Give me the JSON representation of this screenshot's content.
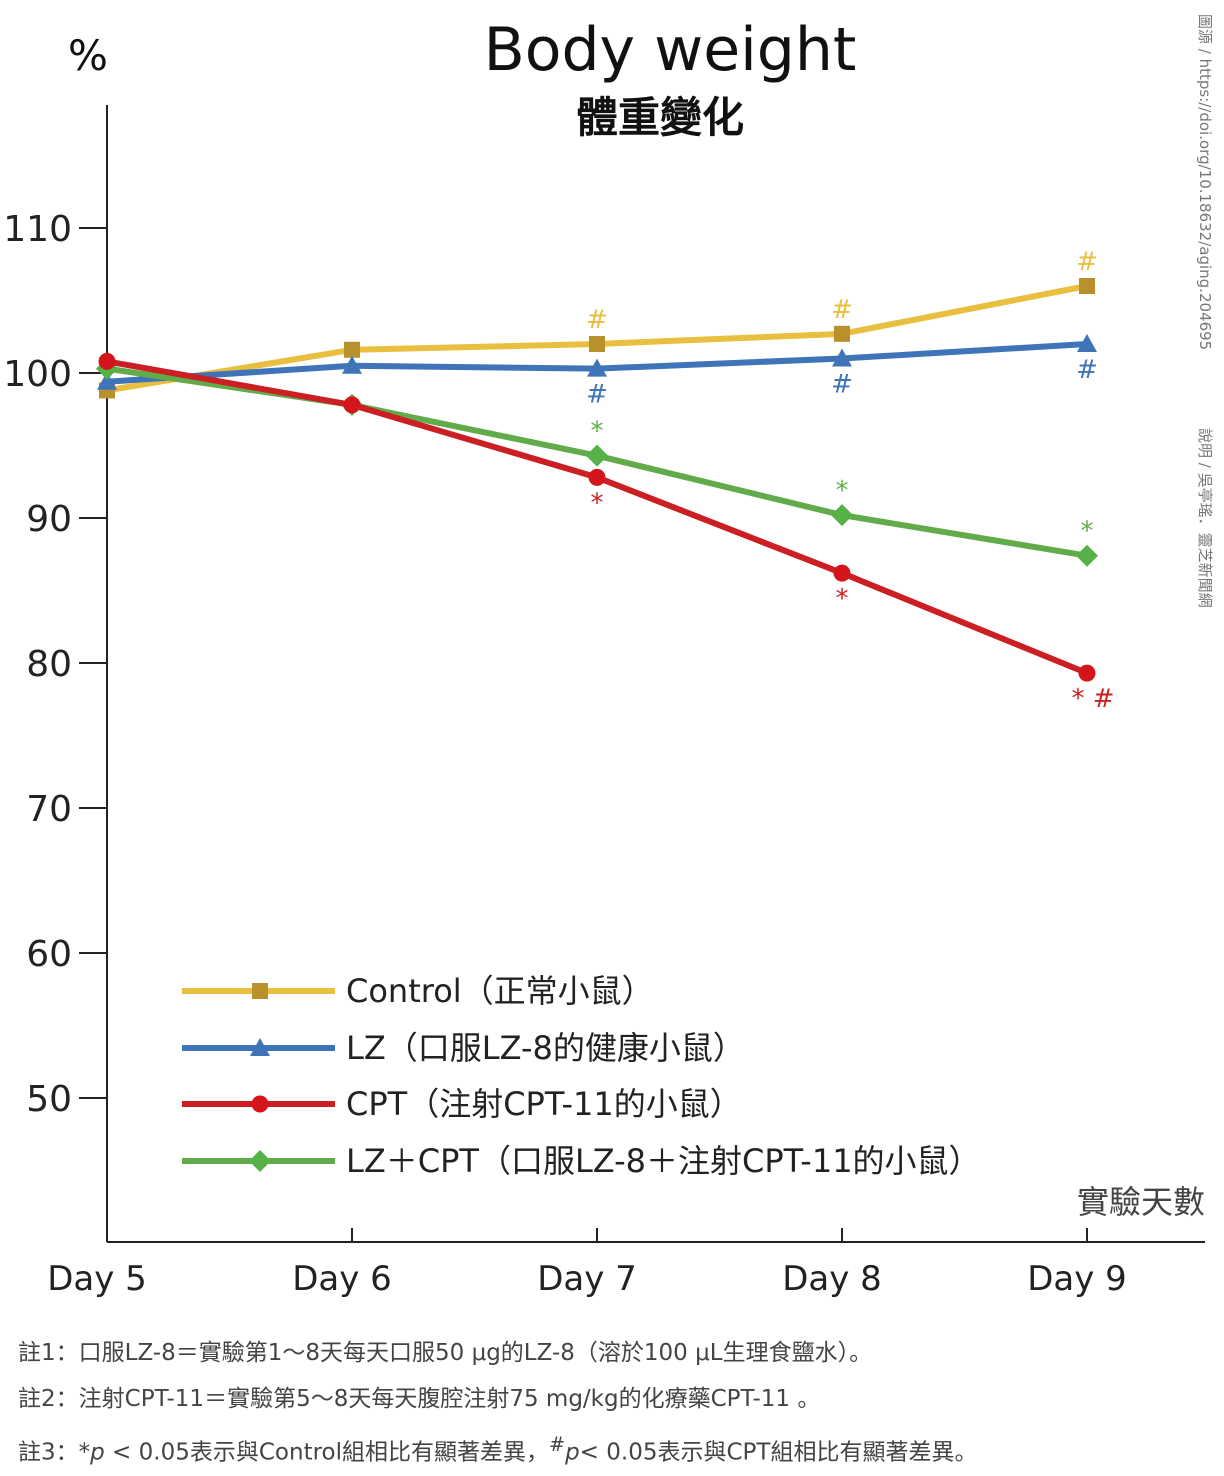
{
  "chart_data": {
    "type": "line",
    "title": "Body weight",
    "subtitle": "體重變化",
    "ylabel": "%",
    "xlabel": "實驗天數",
    "ylim": [
      40,
      118
    ],
    "yticks": [
      50,
      60,
      70,
      80,
      90,
      100,
      110
    ],
    "categories": [
      "Day 5",
      "Day 6",
      "Day 7",
      "Day 8",
      "Day 9"
    ],
    "series": [
      {
        "name": "Control",
        "legend_label": "Control（正常小鼠）",
        "color": "#e8bf3f",
        "marker_color": "#b8912c",
        "marker": "square",
        "values": [
          98.8,
          101.6,
          102.0,
          102.7,
          106.0
        ],
        "annotations": [
          {
            "index": 2,
            "text": "#",
            "pos": "above"
          },
          {
            "index": 3,
            "text": "#",
            "pos": "above"
          },
          {
            "index": 4,
            "text": "#",
            "pos": "above"
          }
        ]
      },
      {
        "name": "LZ",
        "legend_label": "LZ（口服LZ-8的健康小鼠）",
        "color": "#3f74b8",
        "marker_color": "#3f74b8",
        "marker": "triangle",
        "values": [
          99.4,
          100.5,
          100.3,
          101.0,
          102.0
        ],
        "annotations": [
          {
            "index": 2,
            "text": "#",
            "pos": "below"
          },
          {
            "index": 3,
            "text": "#",
            "pos": "below"
          },
          {
            "index": 4,
            "text": "#",
            "pos": "below"
          }
        ]
      },
      {
        "name": "CPT",
        "legend_label": "CPT（注射CPT-11的小鼠）",
        "color": "#cc1f24",
        "marker_color": "#d4161c",
        "marker": "circle",
        "values": [
          100.8,
          97.8,
          92.8,
          86.2,
          79.3
        ],
        "annotations": [
          {
            "index": 2,
            "text": "*",
            "pos": "below"
          },
          {
            "index": 3,
            "text": "*",
            "pos": "below"
          },
          {
            "index": 4,
            "text": "* #",
            "pos": "below"
          }
        ]
      },
      {
        "name": "LZ+CPT",
        "legend_label": "LZ＋CPT（口服LZ-8＋注射CPT-11的小鼠）",
        "color": "#62ab4a",
        "marker_color": "#56b247",
        "marker": "diamond",
        "values": [
          100.3,
          97.8,
          94.3,
          90.2,
          87.4
        ],
        "annotations": [
          {
            "index": 2,
            "text": "*",
            "pos": "above"
          },
          {
            "index": 3,
            "text": "*",
            "pos": "above"
          },
          {
            "index": 4,
            "text": "*",
            "pos": "above"
          }
        ]
      }
    ]
  },
  "credits": {
    "source": "圖源 / https://doi.org/10.18632/aging.204695",
    "caption": "說明 / 吳亭瑤．靈芝新聞網"
  },
  "notes": {
    "note1": "註1：口服LZ-8＝實驗第1～8天每天口服50 μg的LZ-8（溶於100 μL生理食鹽水）。",
    "note2": "註2：注射CPT-11＝實驗第5～8天每天腹腔注射75 mg/kg的化療藥CPT-11 。",
    "note3_prefix": "註3：*",
    "note3_p1": "p",
    "note3_mid": " < 0.05表示與Control組相比有顯著差異，",
    "note3_hash": "#",
    "note3_p2": "p",
    "note3_end": "< 0.05表示與CPT組相比有顯著差異。"
  }
}
